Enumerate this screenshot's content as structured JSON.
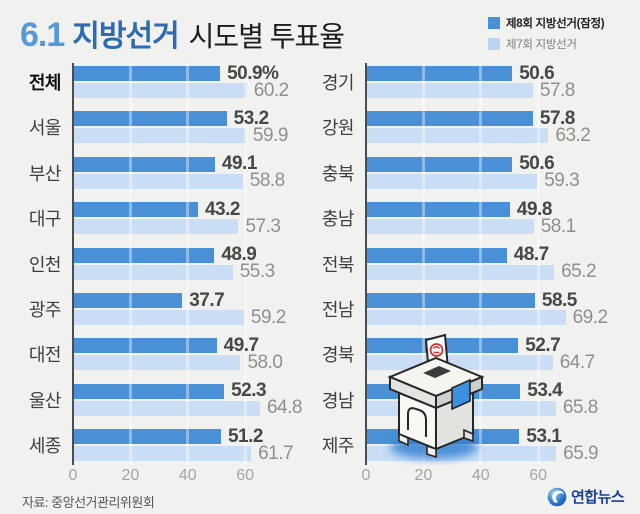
{
  "title": {
    "prefix": "6.1",
    "brand": "지방선거",
    "rest": "시도별 투표율"
  },
  "legend": [
    {
      "label": "제8회 지방선거(잠정)",
      "color": "#4a90d7"
    },
    {
      "label": "제7회 지방선거",
      "color": "#b9d4ef"
    }
  ],
  "source": "자료: 중앙선거관리위원회",
  "logo_text": "연합뉴스",
  "colors": {
    "background": "#f1f1ef",
    "bar_dark": "#4a90d7",
    "bar_light": "#c9ddf4",
    "legend_light": "#b9d4ef",
    "title_date": "#5699d8",
    "title_brand": "#2d6cb3",
    "logo_navy": "#1c3f94",
    "value_dark": "#474747",
    "value_light": "#8f8f8f"
  },
  "chart_data": {
    "type": "bar",
    "orientation": "horizontal",
    "title": "6.1 지방선거 시도별 투표율",
    "series_names": [
      "제8회 지방선거(잠정)",
      "제7회 지방선거"
    ],
    "xlim": [
      0,
      70
    ],
    "x_ticks": [
      0,
      20,
      40,
      60
    ],
    "grid": true,
    "legend_position": "top-right",
    "panels": [
      {
        "rows": [
          {
            "label": "전체",
            "v8": 50.9,
            "v7": 60.2,
            "v8_text": "50.9%",
            "v7_text": "60.2",
            "bold_label": true
          },
          {
            "label": "서울",
            "v8": 53.2,
            "v7": 59.9,
            "v8_text": "53.2",
            "v7_text": "59.9"
          },
          {
            "label": "부산",
            "v8": 49.1,
            "v7": 58.8,
            "v8_text": "49.1",
            "v7_text": "58.8"
          },
          {
            "label": "대구",
            "v8": 43.2,
            "v7": 57.3,
            "v8_text": "43.2",
            "v7_text": "57.3"
          },
          {
            "label": "인천",
            "v8": 48.9,
            "v7": 55.3,
            "v8_text": "48.9",
            "v7_text": "55.3"
          },
          {
            "label": "광주",
            "v8": 37.7,
            "v7": 59.2,
            "v8_text": "37.7",
            "v7_text": "59.2"
          },
          {
            "label": "대전",
            "v8": 49.7,
            "v7": 58.0,
            "v8_text": "49.7",
            "v7_text": "58.0"
          },
          {
            "label": "울산",
            "v8": 52.3,
            "v7": 64.8,
            "v8_text": "52.3",
            "v7_text": "64.8"
          },
          {
            "label": "세종",
            "v8": 51.2,
            "v7": 61.7,
            "v8_text": "51.2",
            "v7_text": "61.7"
          }
        ]
      },
      {
        "rows": [
          {
            "label": "경기",
            "v8": 50.6,
            "v7": 57.8,
            "v8_text": "50.6",
            "v7_text": "57.8"
          },
          {
            "label": "강원",
            "v8": 57.8,
            "v7": 63.2,
            "v8_text": "57.8",
            "v7_text": "63.2"
          },
          {
            "label": "충북",
            "v8": 50.6,
            "v7": 59.3,
            "v8_text": "50.6",
            "v7_text": "59.3"
          },
          {
            "label": "충남",
            "v8": 49.8,
            "v7": 58.1,
            "v8_text": "49.8",
            "v7_text": "58.1"
          },
          {
            "label": "전북",
            "v8": 48.7,
            "v7": 65.2,
            "v8_text": "48.7",
            "v7_text": "65.2"
          },
          {
            "label": "전남",
            "v8": 58.5,
            "v7": 69.2,
            "v8_text": "58.5",
            "v7_text": "69.2"
          },
          {
            "label": "경북",
            "v8": 52.7,
            "v7": 64.7,
            "v8_text": "52.7",
            "v7_text": "64.7"
          },
          {
            "label": "경남",
            "v8": 53.4,
            "v7": 65.8,
            "v8_text": "53.4",
            "v7_text": "65.8"
          },
          {
            "label": "제주",
            "v8": 53.1,
            "v7": 65.9,
            "v8_text": "53.1",
            "v7_text": "65.9"
          }
        ]
      }
    ]
  }
}
